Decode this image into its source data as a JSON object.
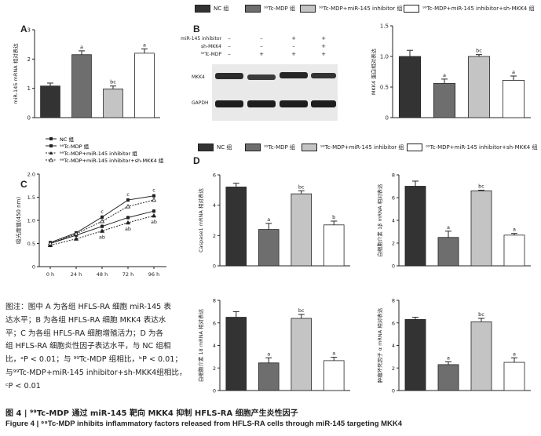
{
  "panel_labels": {
    "A": "A",
    "B": "B",
    "C": "C",
    "D": "D"
  },
  "legend_groups": [
    {
      "label": "NC 组",
      "color": "#333333"
    },
    {
      "label": "⁹⁹Tc-MDP 组",
      "color": "#6e6e6e"
    },
    {
      "label": "⁹⁹Tc-MDP+miR-145 inhibitor 组",
      "color": "#c4c4c4"
    },
    {
      "label": "⁹⁹Tc-MDP+miR-145 inhibitor+sh-MKK4 组",
      "color": "#ffffff"
    }
  ],
  "legend_groups_D": [
    {
      "label": "NC 组",
      "color": "#333333"
    },
    {
      "label": "⁹⁹Tc-MDP 组",
      "color": "#6e6e6e"
    },
    {
      "label": "⁹⁹Tc-MDP+miR-145 inhibitor 组",
      "color": "#c4c4c4"
    },
    {
      "label": "⁹⁹Tc-MDP+miR-145 inhibitor+sh-MKK4 组",
      "color": "#ffffff"
    }
  ],
  "blot": {
    "rows": [
      "miR-145 inhibitor",
      "sh-MKK4",
      "⁹⁹Tc-MDP"
    ],
    "signs": [
      [
        "–",
        "–",
        "+",
        "+"
      ],
      [
        "–",
        "–",
        "–",
        "+"
      ],
      [
        "–",
        "+",
        "+",
        "+"
      ]
    ],
    "bands": [
      "MKK4",
      "GAPDH"
    ]
  },
  "note": [
    "图注：图中 A 为各组 HFLS-RA 细胞 miR-145 表",
    "达水平；B 为各组 HFLS-RA 细胞 MKK4 表达水",
    "平；C 为各组 HFLS-RA 细胞增殖活力；D 为各",
    "组 HFLS-RA 细胞炎性因子表达水平，与 NC 组相",
    "比，ᵃP < 0.01；与 ⁹⁹Tc-MDP 组相比，ᵇP < 0.01；",
    "与⁹⁹Tc-MDP+miR-145 inhibitor+sh-MKK4组相比，",
    "ᶜP < 0.01"
  ],
  "caption_cn": "图 4 | ⁹⁹Tc-MDP 通过 miR-145 靶向 MKK4 抑制 HFLS-RA 细胞产生炎性因子",
  "caption_en": "Figure 4 | ⁹⁹Tc-MDP inhibits inflammatory factors released from HFLS-RA cells through miR-145 targeting MKK4",
  "chart_data": [
    {
      "panel": "A",
      "type": "bar",
      "ylabel": "miR-145 mRNA 相对表达",
      "xlabel": "",
      "ylim": [
        0,
        3
      ],
      "yticks": [
        0,
        1,
        2,
        3
      ],
      "values": [
        1.08,
        2.15,
        0.98,
        2.2
      ],
      "errors": [
        0.1,
        0.13,
        0.1,
        0.15
      ],
      "annotations": [
        "",
        "a",
        "bc",
        "a"
      ]
    },
    {
      "panel": "B",
      "type": "bar",
      "ylabel": "MKK4 蛋白相对表达",
      "xlabel": "",
      "ylim": [
        0,
        1.5
      ],
      "yticks": [
        0,
        0.5,
        1.0,
        1.5
      ],
      "ytick_labels": [
        "0",
        "0.5",
        "1.0",
        "1.5"
      ],
      "values": [
        1.0,
        0.56,
        1.0,
        0.61
      ],
      "errors": [
        0.1,
        0.07,
        0.03,
        0.07
      ],
      "annotations": [
        "",
        "a",
        "bc",
        "a"
      ]
    },
    {
      "panel": "C",
      "type": "line",
      "ylabel": "吸光度值(450 nm)",
      "xlabel": "",
      "x": [
        "0 h",
        "24 h",
        "48 h",
        "72 h",
        "96 h"
      ],
      "ylim": [
        0,
        2.0
      ],
      "yticks": [
        0,
        0.5,
        1.0,
        1.5,
        2.0
      ],
      "ytick_labels": [
        "0",
        "0.5",
        "1.0",
        "1.5",
        "2.0"
      ],
      "series": [
        {
          "name": "NC 组",
          "values": [
            0.5,
            0.68,
            0.87,
            1.06,
            1.2
          ],
          "marker": "square",
          "dash": false
        },
        {
          "name": "⁹⁹Tc-MDP 组",
          "values": [
            0.52,
            0.73,
            1.07,
            1.44,
            1.53
          ],
          "marker": "square",
          "dash": false
        },
        {
          "name": "⁹⁹Tc-MDP+miR-145 inhibitor 组",
          "values": [
            0.46,
            0.6,
            0.77,
            0.95,
            1.1
          ],
          "marker": "triangle",
          "dash": true
        },
        {
          "name": "⁹⁹Tc-MDP+miR-145 inhibitor+sh-MKK4 组",
          "values": [
            0.5,
            0.71,
            0.98,
            1.3,
            1.44
          ],
          "marker": "triangle",
          "dash": true
        }
      ],
      "annotations_top": [
        "",
        "",
        "c",
        "c",
        "c"
      ],
      "annotations_low": [
        "",
        "",
        "ab",
        "ab",
        "ab"
      ]
    },
    {
      "panel": "D1",
      "type": "bar",
      "ylabel": "Caspase1 mRNA 相对表达",
      "ylim": [
        0,
        6
      ],
      "yticks": [
        0,
        2,
        4,
        6
      ],
      "values": [
        5.2,
        2.4,
        4.75,
        2.7
      ],
      "errors": [
        0.25,
        0.4,
        0.2,
        0.25
      ],
      "annotations": [
        "",
        "a",
        "bc",
        "b"
      ]
    },
    {
      "panel": "D2",
      "type": "bar",
      "ylabel": "白细胞介素 1β mRNA 相对表达",
      "ylim": [
        0,
        8
      ],
      "yticks": [
        0,
        2,
        4,
        6,
        8
      ],
      "values": [
        7.0,
        2.5,
        6.6,
        2.7
      ],
      "errors": [
        0.45,
        0.55,
        0.05,
        0.15
      ],
      "annotations": [
        "",
        "a",
        "bc",
        "a"
      ]
    },
    {
      "panel": "D3",
      "type": "bar",
      "ylabel": "白细胞介素 18 mRNA 相对表达",
      "ylim": [
        0,
        8
      ],
      "yticks": [
        0,
        2,
        4,
        6,
        8
      ],
      "values": [
        6.5,
        2.45,
        6.4,
        2.65
      ],
      "errors": [
        0.5,
        0.45,
        0.35,
        0.3
      ],
      "annotations": [
        "",
        "a",
        "bc",
        "a"
      ]
    },
    {
      "panel": "D4",
      "type": "bar",
      "ylabel": "肿瘤坏死因子 α mRNA 相对表达",
      "ylim": [
        0,
        8
      ],
      "yticks": [
        0,
        2,
        4,
        6,
        8
      ],
      "values": [
        6.3,
        2.3,
        6.1,
        2.5
      ],
      "errors": [
        0.2,
        0.25,
        0.3,
        0.4
      ],
      "annotations": [
        "",
        "a",
        "bc",
        "a"
      ]
    }
  ]
}
